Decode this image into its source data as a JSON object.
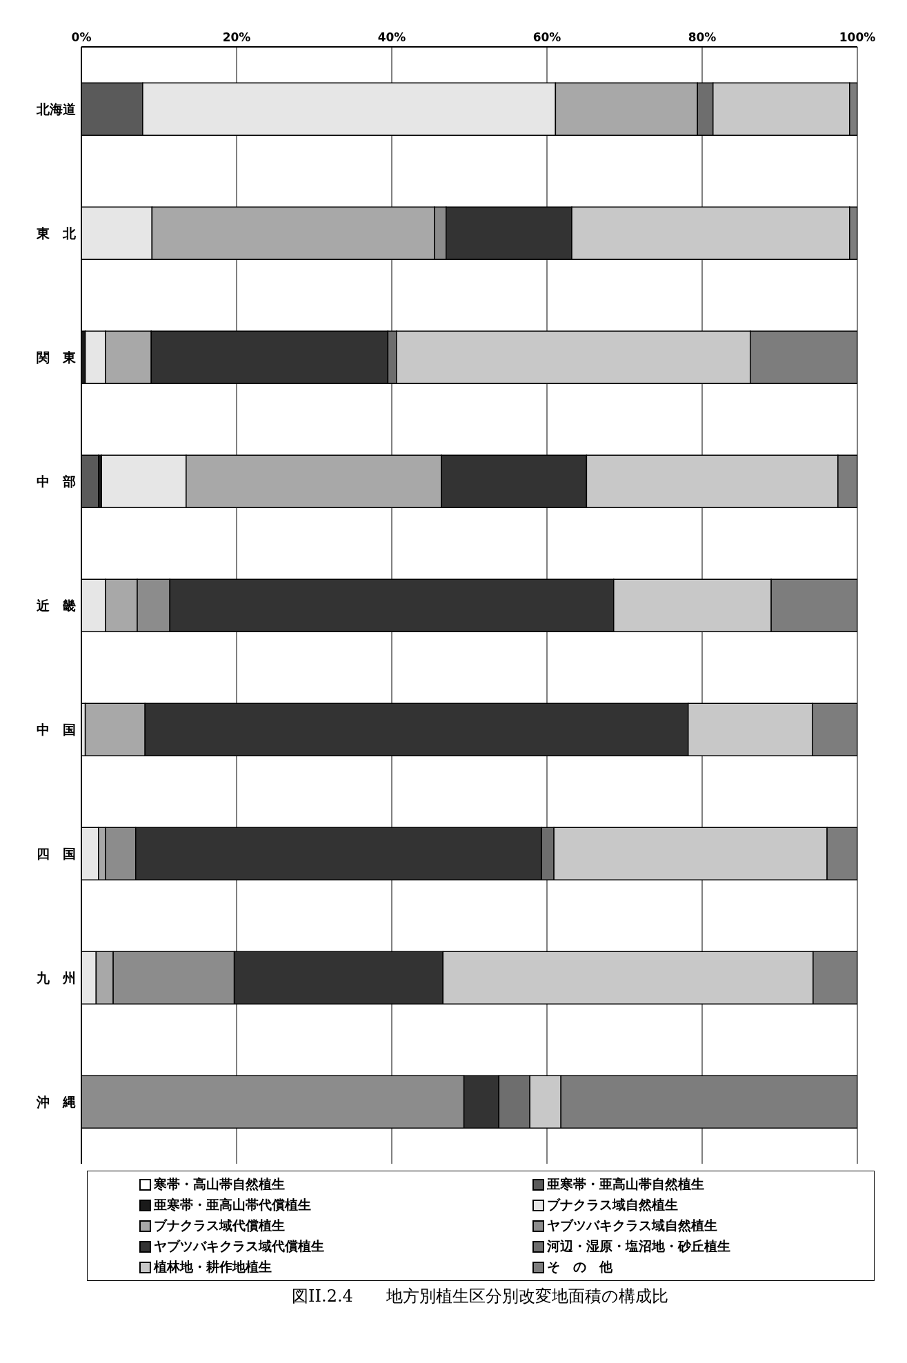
{
  "chart_data": {
    "type": "bar",
    "orientation": "horizontal",
    "stacked": true,
    "title": "図II.2.4　　地方別植生区分別改変地面積の構成比",
    "categories": [
      "北海道",
      "東　北",
      "関　東",
      "中　部",
      "近　畿",
      "中　国",
      "四　国",
      "九　州",
      "沖　縄"
    ],
    "series": [
      {
        "name": "寒帯・高山帯自然植生",
        "color": "#ffffff",
        "values": [
          null,
          null,
          null,
          null,
          null,
          null,
          null,
          null,
          null
        ]
      },
      {
        "name": "亜寒帯・亜高山帯自然植生",
        "color": "#5a5a5a",
        "values": [
          7.9,
          null,
          null,
          2.2,
          null,
          null,
          null,
          null,
          null
        ]
      },
      {
        "name": "亜寒帯・亜高山帯代償植生",
        "color": "#1a1a1a",
        "values": [
          null,
          null,
          0.5,
          0.4,
          null,
          null,
          null,
          null,
          null
        ]
      },
      {
        "name": "ブナクラス域自然植生",
        "color": "#e6e6e6",
        "values": [
          53.2,
          9.1,
          2.6,
          10.9,
          3.1,
          0.5,
          2.2,
          1.9,
          null
        ]
      },
      {
        "name": "ブナクラス域代償植生",
        "color": "#a8a8a8",
        "values": [
          18.3,
          36.4,
          5.9,
          32.9,
          4.1,
          7.7,
          0.9,
          2.2,
          null
        ]
      },
      {
        "name": "ヤブツバキクラス域自然植生",
        "color": "#8c8c8c",
        "values": [
          null,
          1.5,
          null,
          null,
          4.2,
          null,
          3.9,
          15.6,
          49.3
        ]
      },
      {
        "name": "ヤブツバキクラス域代償植生",
        "color": "#333333",
        "values": [
          null,
          16.2,
          30.5,
          18.7,
          57.2,
          70.0,
          52.3,
          26.9,
          4.5
        ]
      },
      {
        "name": "河辺・湿原・塩沼地・砂丘植生",
        "color": "#6e6e6e",
        "values": [
          2.0,
          null,
          1.1,
          null,
          null,
          null,
          1.6,
          null,
          4.0
        ]
      },
      {
        "name": "植林地・耕作地植生",
        "color": "#c8c8c8",
        "values": [
          17.6,
          35.8,
          45.6,
          32.4,
          20.3,
          16.0,
          35.2,
          47.7,
          4.0
        ]
      },
      {
        "name": "そ　の　他",
        "color": "#7d7d7d",
        "values": [
          1.0,
          1.0,
          13.8,
          2.5,
          11.1,
          5.8,
          3.9,
          5.7,
          38.2
        ]
      }
    ],
    "xlim": [
      0,
      100
    ],
    "xticks": [
      {
        "value": 0,
        "label": "0%"
      },
      {
        "value": 20,
        "label": "20%"
      },
      {
        "value": 40,
        "label": "40%"
      },
      {
        "value": 60,
        "label": "60%"
      },
      {
        "value": 80,
        "label": "80%"
      },
      {
        "value": 100,
        "label": "100%"
      }
    ],
    "grid": "x",
    "legend": "bottom"
  }
}
